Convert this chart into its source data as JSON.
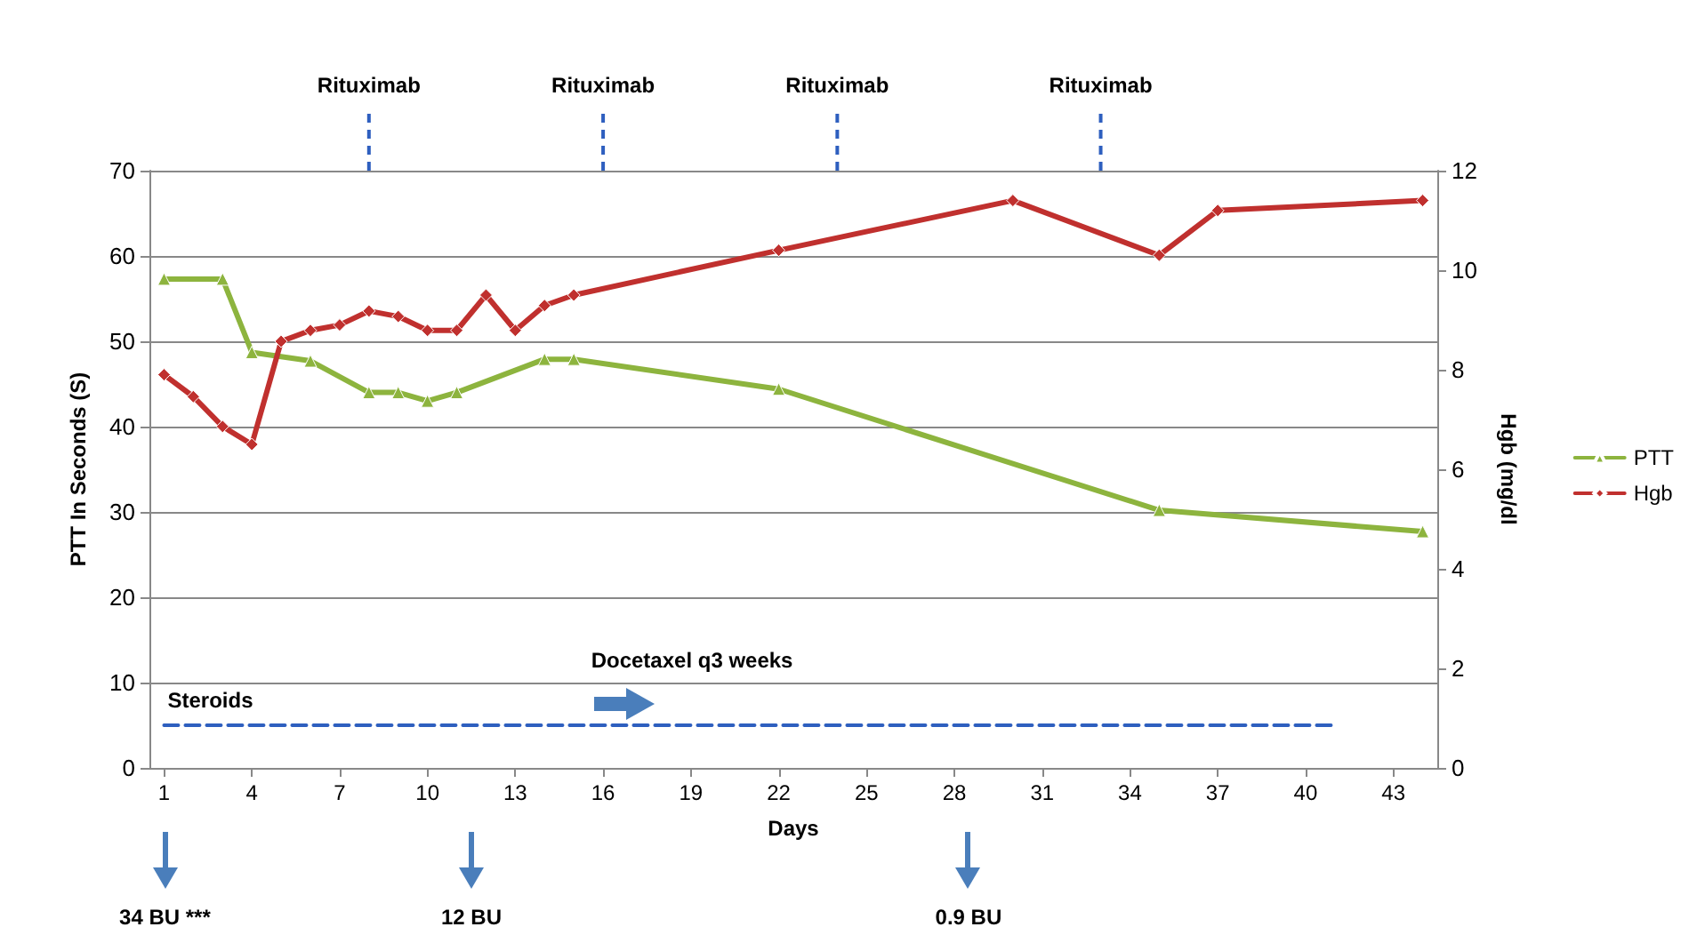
{
  "chart_data": {
    "type": "line",
    "xlabel": "Days",
    "ylabel": "PTT In Seconds (S)",
    "y2label": "Hgb (mg/dl",
    "xlim": [
      0.5,
      44.5
    ],
    "xticks": [
      1,
      4,
      7,
      10,
      13,
      16,
      19,
      22,
      25,
      28,
      31,
      34,
      37,
      40,
      43
    ],
    "ylim": [
      0,
      70
    ],
    "yticks": [
      0,
      10,
      20,
      30,
      40,
      50,
      60,
      70
    ],
    "y2lim": [
      0,
      12
    ],
    "y2ticks": [
      0,
      2,
      4,
      6,
      8,
      10,
      12
    ],
    "grid": "y",
    "legend": "right",
    "line_style": "solid",
    "series": [
      {
        "name": "PTT",
        "color": "#8db43e",
        "marker": "triangle",
        "x": [
          1,
          3,
          4,
          6,
          8,
          9,
          10,
          11,
          14,
          15,
          22,
          35,
          44
        ],
        "values": [
          57.3,
          57.3,
          48.7,
          47.7,
          44,
          44,
          43,
          44,
          47.9,
          47.9,
          44.4,
          30.2,
          27.7
        ]
      },
      {
        "name": "Hgb",
        "color": "#c0302e",
        "marker": "diamond",
        "axis": "y2",
        "x": [
          1,
          2,
          3,
          4,
          5,
          6,
          7,
          8,
          9,
          10,
          11,
          12,
          13,
          14,
          15,
          22,
          30,
          35,
          37,
          44
        ],
        "values": [
          7.9,
          7.46,
          6.86,
          6.5,
          8.57,
          8.79,
          8.9,
          9.18,
          9.07,
          8.79,
          8.79,
          9.5,
          8.79,
          9.29,
          9.5,
          10.4,
          11.4,
          10.3,
          11.2,
          11.4
        ]
      },
      {
        "name": "Steroids",
        "color": "#2e5fbf",
        "marker": "none",
        "line_style": "dashed",
        "x": [
          1,
          41
        ],
        "values": [
          5,
          5
        ]
      }
    ],
    "ref_lines": [
      {
        "axis": "x",
        "value": 8,
        "label": "Rituximab",
        "color": "#2e5fbf",
        "line_style": "dashed"
      },
      {
        "axis": "x",
        "value": 16,
        "label": "Rituximab",
        "color": "#2e5fbf",
        "line_style": "dashed"
      },
      {
        "axis": "x",
        "value": 24,
        "label": "Rituximab",
        "color": "#2e5fbf",
        "line_style": "dashed"
      },
      {
        "axis": "x",
        "value": 33,
        "label": "Rituximab",
        "color": "#2e5fbf",
        "line_style": "dashed"
      }
    ],
    "annotations": [
      "Docetaxel q3 weeks",
      "34 BU ***",
      "12 BU",
      "0.9 BU"
    ]
  }
}
